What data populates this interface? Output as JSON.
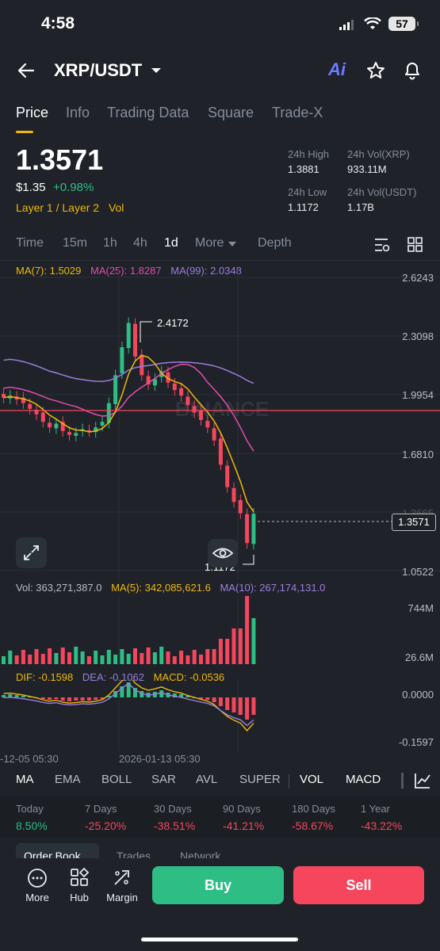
{
  "status_bar": {
    "time": "4:58",
    "battery": "57"
  },
  "header": {
    "pair": "XRP/USDT",
    "ai_label": "Ai"
  },
  "tabs": [
    "Price",
    "Info",
    "Trading Data",
    "Square",
    "Trade-X"
  ],
  "price": {
    "last": "1.3571",
    "usd": "$1.35",
    "change": "+0.98%",
    "tags": "Layer 1 / Layer 2",
    "tag2": "Vol"
  },
  "stats": {
    "high_label": "24h High",
    "high": "1.3881",
    "low_label": "24h Low",
    "low": "1.1172",
    "vol_xrp_label": "24h Vol(XRP)",
    "vol_xrp": "933.11M",
    "vol_usdt_label": "24h Vol(USDT)",
    "vol_usdt": "1.17B"
  },
  "timeframes": [
    "Time",
    "15m",
    "1h",
    "4h",
    "1d",
    "More",
    "Depth"
  ],
  "ma_legend": {
    "ma7": "MA(7): 1.5029",
    "ma25": "MA(25): 1.8287",
    "ma99": "MA(99): 2.0348"
  },
  "y_axis": [
    "2.6243",
    "2.3098",
    "1.9954",
    "1.6810",
    "1.3665",
    "1.0522"
  ],
  "current_price_tag": "1.3571",
  "annotations": {
    "high": "2.4172",
    "low": "1.1172"
  },
  "watermark": "BINANCE",
  "volume_legend": {
    "vol": "Vol: 363,271,387.0",
    "ma5": "MA(5): 342,085,621.6",
    "ma10": "MA(10): 267,174,131.0"
  },
  "volume_axis": [
    "744M",
    "26.6M"
  ],
  "macd_legend": {
    "dif": "DIF: -0.1598",
    "dea": "DEA: -0.1062",
    "macd": "MACD: -0.0536"
  },
  "macd_axis": [
    "0.0000",
    "-0.1597"
  ],
  "x_axis": [
    "-12-05 05:30",
    "2026-01-13 05:30"
  ],
  "indicators": [
    "MA",
    "EMA",
    "BOLL",
    "SAR",
    "AVL",
    "SUPER",
    "VOL",
    "MACD"
  ],
  "performance": [
    {
      "label": "Today",
      "value": "8.50%"
    },
    {
      "label": "7 Days",
      "value": "-25.20%"
    },
    {
      "label": "30 Days",
      "value": "-38.51%"
    },
    {
      "label": "90 Days",
      "value": "-41.21%"
    },
    {
      "label": "180 Days",
      "value": "-58.67%"
    },
    {
      "label": "1 Year",
      "value": "-43.22%"
    }
  ],
  "section_tabs": [
    "Order Book",
    "Trades",
    "Network"
  ],
  "bottom_nav": {
    "more": "More",
    "hub": "Hub",
    "margin": "Margin",
    "buy": "Buy",
    "sell": "Sell"
  },
  "colors": {
    "up": "#2ebd85",
    "down": "#f6465d",
    "accent": "#f0b90b",
    "ma25": "#e04fae",
    "ma99": "#9b7ee0"
  },
  "chart_data": {
    "type": "candlestick",
    "title": "",
    "ylim": [
      1.0522,
      2.6243
    ],
    "closes": [
      1.98,
      1.99,
      1.97,
      1.95,
      1.92,
      1.89,
      1.85,
      1.82,
      1.84,
      1.8,
      1.78,
      1.79,
      1.81,
      1.8,
      1.82,
      1.85,
      1.95,
      2.1,
      2.25,
      2.38,
      2.2,
      2.1,
      2.05,
      2.08,
      2.12,
      2.06,
      2.02,
      1.99,
      1.94,
      1.9,
      1.86,
      1.82,
      1.75,
      1.62,
      1.5,
      1.42,
      1.36,
      1.2,
      1.3571
    ]
  }
}
